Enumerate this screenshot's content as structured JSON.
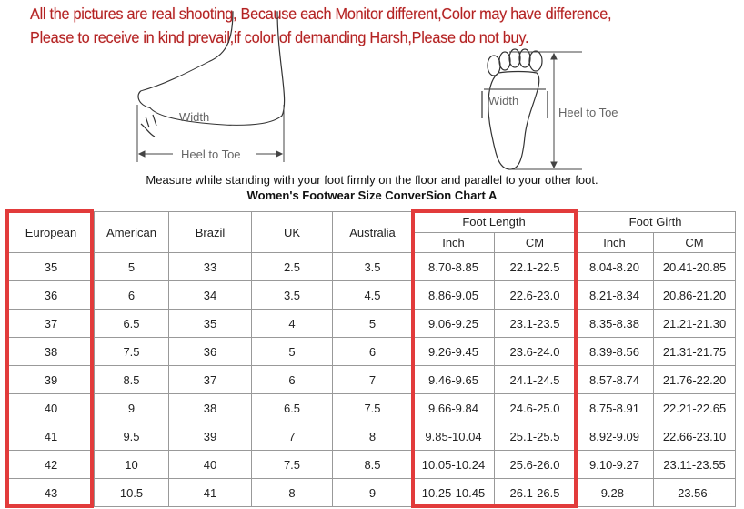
{
  "notice": {
    "line1": "All the pictures are real shooting, Because each Monitor different,Color may have difference,",
    "line2": "Please to receive in kind prevail,if color of demanding Harsh,Please do not buy."
  },
  "diagram": {
    "side_width": "Width",
    "side_heel_to_toe": "Heel to Toe",
    "top_width": "Width",
    "top_heel_to_toe": "Heel to Toe"
  },
  "instruction": "Measure while standing with your foot firmly on the floor and parallel to your other foot.",
  "chart_title": "Women's Footwear Size ConverSion Chart A",
  "highlight_color": "#e23b3b",
  "table": {
    "headers": {
      "european": "European",
      "american": "American",
      "brazil": "Brazil",
      "uk": "UK",
      "australia": "Australia",
      "foot_length": "Foot Length",
      "foot_girth": "Foot Girth",
      "inch": "Inch",
      "cm": "CM"
    },
    "rows": [
      [
        "35",
        "5",
        "33",
        "2.5",
        "3.5",
        "8.70-8.85",
        "22.1-22.5",
        "8.04-8.20",
        "20.41-20.85"
      ],
      [
        "36",
        "6",
        "34",
        "3.5",
        "4.5",
        "8.86-9.05",
        "22.6-23.0",
        "8.21-8.34",
        "20.86-21.20"
      ],
      [
        "37",
        "6.5",
        "35",
        "4",
        "5",
        "9.06-9.25",
        "23.1-23.5",
        "8.35-8.38",
        "21.21-21.30"
      ],
      [
        "38",
        "7.5",
        "36",
        "5",
        "6",
        "9.26-9.45",
        "23.6-24.0",
        "8.39-8.56",
        "21.31-21.75"
      ],
      [
        "39",
        "8.5",
        "37",
        "6",
        "7",
        "9.46-9.65",
        "24.1-24.5",
        "8.57-8.74",
        "21.76-22.20"
      ],
      [
        "40",
        "9",
        "38",
        "6.5",
        "7.5",
        "9.66-9.84",
        "24.6-25.0",
        "8.75-8.91",
        "22.21-22.65"
      ],
      [
        "41",
        "9.5",
        "39",
        "7",
        "8",
        "9.85-10.04",
        "25.1-25.5",
        "8.92-9.09",
        "22.66-23.10"
      ],
      [
        "42",
        "10",
        "40",
        "7.5",
        "8.5",
        "10.05-10.24",
        "25.6-26.0",
        "9.10-9.27",
        "23.11-23.55"
      ],
      [
        "43",
        "10.5",
        "41",
        "8",
        "9",
        "10.25-10.45",
        "26.1-26.5",
        "9.28-",
        "23.56-"
      ]
    ]
  }
}
